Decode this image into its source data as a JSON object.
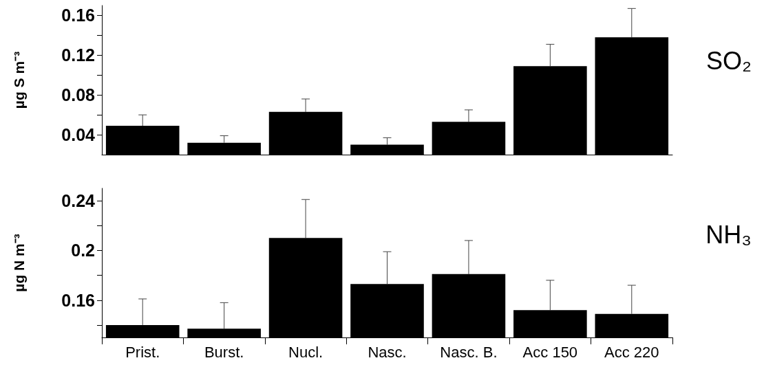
{
  "chart_data": [
    {
      "type": "bar",
      "annotations": [
        "SO₂"
      ],
      "ylabel": "µg S m⁻³",
      "categories": [
        null,
        null,
        null,
        null,
        null,
        null,
        null
      ],
      "values": [
        0.049,
        0.032,
        0.063,
        0.03,
        0.053,
        0.109,
        0.138
      ],
      "color": "#000000",
      "errors": [
        [
          0.049,
          0.06
        ],
        [
          0.032,
          0.039
        ],
        [
          0.063,
          0.076
        ],
        [
          0.03,
          0.037
        ],
        [
          0.053,
          0.065
        ],
        [
          0.109,
          0.131
        ],
        [
          0.138,
          0.167
        ]
      ],
      "ylim": [
        0.02,
        0.17
      ],
      "yticks": [
        0.04,
        {
          "value": 0.06,
          "label": null
        },
        0.08,
        {
          "value": 0.1,
          "label": null
        },
        0.12,
        {
          "value": 0.14,
          "label": null
        },
        0.16
      ],
      "tick_labels": "y"
    },
    {
      "type": "bar",
      "annotations": [
        "NH₃"
      ],
      "ylabel": "µg N m⁻³",
      "categories": [
        "Prist.",
        "Burst.",
        "Nucl.",
        "Nasc.",
        "Nasc. B.",
        "Acc 150",
        "Acc 220"
      ],
      "values": [
        0.14,
        0.137,
        0.21,
        0.173,
        0.181,
        0.152,
        0.149
      ],
      "color": "#000000",
      "errors": [
        [
          0.14,
          0.161
        ],
        [
          0.137,
          0.158
        ],
        [
          0.21,
          0.241
        ],
        [
          0.173,
          0.199
        ],
        [
          0.181,
          0.208
        ],
        [
          0.152,
          0.176
        ],
        [
          0.149,
          0.172
        ]
      ],
      "ylim": [
        0.13,
        0.25
      ],
      "yticks": [
        {
          "value": 0.14,
          "label": null
        },
        0.16,
        {
          "value": 0.18,
          "label": null
        },
        0.2,
        {
          "value": 0.22,
          "label": null
        },
        0.24
      ]
    }
  ]
}
